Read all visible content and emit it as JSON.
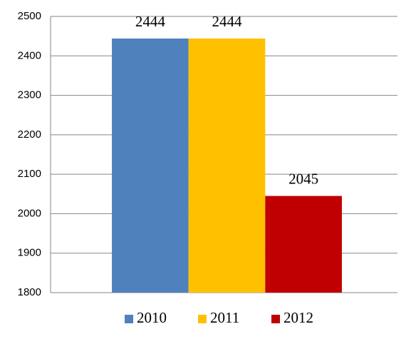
{
  "chart_data": {
    "type": "bar",
    "categories": [
      null
    ],
    "series": [
      {
        "name": "2010",
        "color": "#4f81bd",
        "values": [
          2444
        ]
      },
      {
        "name": "2011",
        "color": "#ffc000",
        "values": [
          2444
        ]
      },
      {
        "name": "2012",
        "color": "#c00000",
        "values": [
          2045
        ]
      }
    ],
    "ylim": [
      1800,
      2500
    ],
    "yticks": [
      1800,
      1900,
      2000,
      2100,
      2200,
      2300,
      2400,
      2500
    ],
    "grid": true,
    "legend": "bottom"
  }
}
